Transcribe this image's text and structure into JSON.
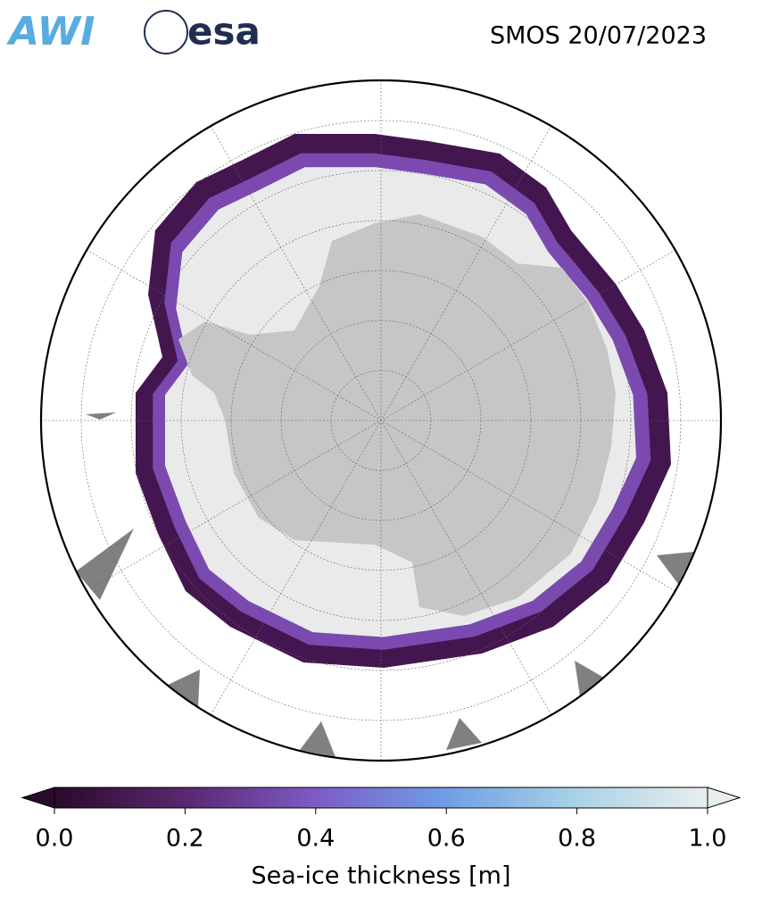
{
  "header": {
    "logos": [
      "AWI",
      "esa"
    ],
    "title": "SMOS 20/07/2023"
  },
  "colorbar": {
    "label": "Sea-ice thickness [m]",
    "lim": [
      0,
      1
    ],
    "colors": [
      "#2a0a2a",
      "#5a2770",
      "#7d5bc6",
      "#6f9ee6",
      "#a9d2e6",
      "#e8eeee"
    ],
    "ticks": [
      {
        "value": 0,
        "label": "0.0"
      },
      {
        "value": 0.2,
        "label": "0.2"
      },
      {
        "value": 0.4,
        "label": "0.4"
      },
      {
        "value": 0.6,
        "label": "0.6"
      },
      {
        "value": 0.8,
        "label": "0.8"
      },
      {
        "value": 1,
        "label": "1.0"
      }
    ]
  }
}
